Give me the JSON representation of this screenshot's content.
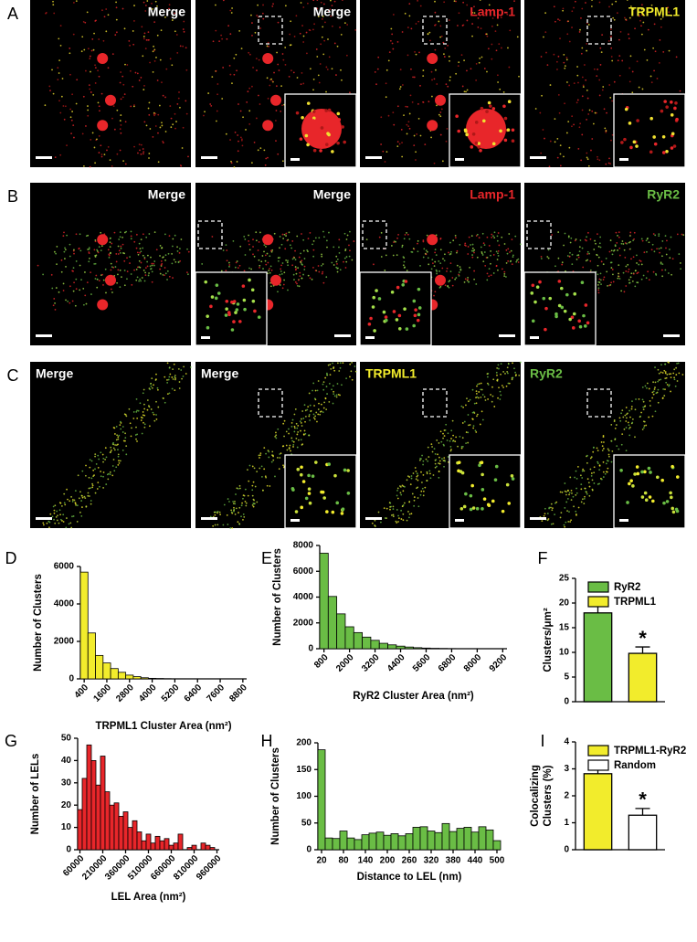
{
  "image_rows": [
    {
      "label": "A",
      "align": "right",
      "panels": [
        {
          "text": "Merge",
          "color": "#ffffff"
        },
        {
          "text": "Merge",
          "color": "#ffffff"
        },
        {
          "text": "Lamp-1",
          "color": "#e8262a"
        },
        {
          "text": "TRPML1",
          "color": "#f2ec2c"
        }
      ]
    },
    {
      "label": "B",
      "align": "right",
      "panels": [
        {
          "text": "Merge",
          "color": "#ffffff"
        },
        {
          "text": "Merge",
          "color": "#ffffff"
        },
        {
          "text": "Lamp-1",
          "color": "#e8262a"
        },
        {
          "text": "RyR2",
          "color": "#6abd45"
        }
      ]
    },
    {
      "label": "C",
      "align": "left",
      "panels": [
        {
          "text": "Merge",
          "color": "#ffffff"
        },
        {
          "text": "Merge",
          "color": "#ffffff"
        },
        {
          "text": "TRPML1",
          "color": "#f2ec2c"
        },
        {
          "text": "RyR2",
          "color": "#6abd45"
        }
      ]
    }
  ],
  "chart_data": [
    {
      "type": "histogram",
      "letter": "D",
      "xlabel": "TRPML1 Cluster Area (nm²)",
      "ylabel": "Number of Clusters",
      "bins": [
        200,
        600,
        1000,
        1400,
        1800,
        2200,
        2600,
        3000,
        3400,
        3800,
        4200,
        4600,
        5000,
        5400,
        5800,
        6200,
        6600,
        7000,
        7400,
        7800,
        8200,
        8600,
        9000
      ],
      "values": [
        5700,
        2450,
        1250,
        850,
        550,
        350,
        200,
        120,
        60,
        30,
        20,
        10,
        5,
        5,
        0,
        0,
        0,
        0,
        0,
        0,
        0,
        0
      ],
      "color": "#f2ec2c",
      "xlim": [
        200,
        9000
      ],
      "ylim": [
        0,
        6000
      ],
      "xticks": [
        400,
        1600,
        2800,
        4000,
        5200,
        6400,
        7600,
        8800
      ],
      "yticks": [
        0,
        2000,
        4000,
        6000
      ],
      "xtick_rotation": 45
    },
    {
      "type": "histogram",
      "letter": "E",
      "xlabel": "RyR2 Cluster Area (nm²)",
      "ylabel": "Number of Clusters",
      "bins": [
        600,
        1000,
        1400,
        1800,
        2200,
        2600,
        3000,
        3400,
        3800,
        4200,
        4600,
        5000,
        5400,
        5800,
        6200,
        6600,
        7000,
        7400,
        7800,
        8200,
        8600,
        9000,
        9400
      ],
      "values": [
        7400,
        4050,
        2700,
        1700,
        1250,
        900,
        650,
        420,
        300,
        200,
        130,
        80,
        50,
        30,
        20,
        10,
        5,
        0,
        0,
        0,
        0,
        0
      ],
      "color": "#6abd45",
      "xlim": [
        600,
        9400
      ],
      "ylim": [
        0,
        8000
      ],
      "xticks": [
        800,
        2000,
        3200,
        4400,
        5600,
        6800,
        8000,
        9200
      ],
      "yticks": [
        0,
        2000,
        4000,
        6000,
        8000
      ],
      "xtick_rotation": 45
    },
    {
      "type": "bar",
      "letter": "F",
      "ylabel": "Clusters/μm²",
      "categories": [
        "RyR2",
        "TRPML1"
      ],
      "values": [
        18,
        9.8
      ],
      "errors": [
        1.8,
        1.3
      ],
      "colors": [
        "#6abd45",
        "#f2ec2c"
      ],
      "ylim": [
        0,
        25
      ],
      "yticks": [
        0,
        5,
        10,
        15,
        20,
        25
      ],
      "annotation": "*"
    },
    {
      "type": "histogram",
      "letter": "G",
      "xlabel": "LEL Area (nm²)",
      "ylabel": "Number of LELs",
      "bins": [
        45000,
        75000,
        105000,
        135000,
        165000,
        195000,
        225000,
        255000,
        285000,
        315000,
        345000,
        375000,
        405000,
        435000,
        465000,
        495000,
        525000,
        555000,
        585000,
        615000,
        645000,
        675000,
        705000,
        735000,
        765000,
        795000,
        825000,
        855000,
        885000,
        915000,
        945000,
        975000
      ],
      "values": [
        18,
        32,
        47,
        40,
        29,
        42,
        26,
        20,
        21,
        15,
        17,
        10,
        13,
        8,
        4,
        7,
        3,
        6,
        4,
        5,
        2,
        3,
        7,
        0,
        1,
        2,
        0,
        3,
        2,
        1,
        0
      ],
      "color": "#e8262a",
      "xlim": [
        45000,
        975000
      ],
      "ylim": [
        0,
        50
      ],
      "xticks": [
        60000,
        210000,
        360000,
        510000,
        660000,
        810000,
        960000
      ],
      "yticks": [
        0,
        10,
        20,
        30,
        40,
        50
      ],
      "xtick_rotation": 45
    },
    {
      "type": "histogram",
      "letter": "H",
      "xlabel": "Distance to LEL (nm)",
      "ylabel": "Number of Clusters",
      "bins": [
        10,
        30,
        50,
        70,
        90,
        110,
        130,
        150,
        170,
        190,
        210,
        230,
        250,
        270,
        290,
        310,
        330,
        350,
        370,
        390,
        410,
        430,
        450,
        470,
        490,
        510
      ],
      "values": [
        187,
        22,
        21,
        35,
        22,
        19,
        28,
        31,
        33,
        27,
        30,
        26,
        30,
        42,
        43,
        35,
        32,
        49,
        34,
        40,
        42,
        33,
        43,
        37,
        17
      ],
      "color": "#6abd45",
      "xlim": [
        10,
        510
      ],
      "ylim": [
        0,
        200
      ],
      "xticks": [
        20,
        80,
        140,
        200,
        260,
        320,
        380,
        440,
        500
      ],
      "yticks": [
        0,
        50,
        100,
        150,
        200
      ],
      "xtick_rotation": 0
    },
    {
      "type": "bar",
      "letter": "I",
      "ylabel": [
        "Colocalizing",
        "Clusters (%)"
      ],
      "categories": [
        "TRPML1-RyR2",
        "Random"
      ],
      "values": [
        2.82,
        1.28
      ],
      "errors": [
        0.18,
        0.25
      ],
      "colors": [
        "#f2ec2c",
        "#ffffff"
      ],
      "ylim": [
        0,
        4
      ],
      "yticks": [
        0,
        1,
        2,
        3,
        4
      ],
      "annotation": "*"
    }
  ]
}
